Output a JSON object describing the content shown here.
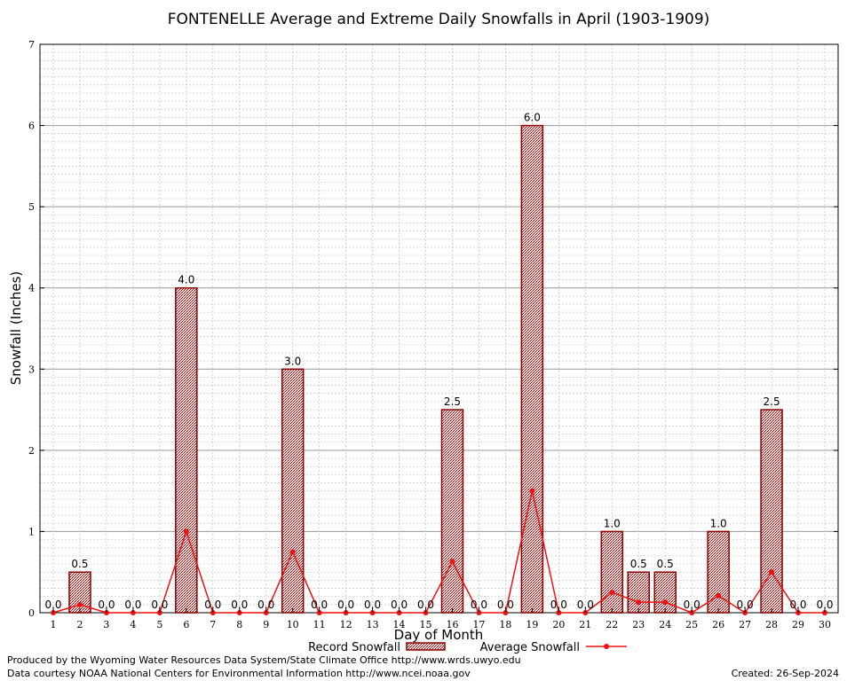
{
  "chart_data": {
    "type": "bar",
    "title": "FONTENELLE Average and Extreme Daily Snowfalls in April (1903-1909)",
    "xlabel": "Day of Month",
    "ylabel": "Snowfall (Inches)",
    "ylim": [
      0,
      7
    ],
    "y_ticks": [
      "0",
      "1",
      "2",
      "3",
      "4",
      "5",
      "6",
      "7"
    ],
    "categories": [
      "1",
      "2",
      "3",
      "4",
      "5",
      "6",
      "7",
      "8",
      "9",
      "10",
      "11",
      "12",
      "13",
      "14",
      "15",
      "16",
      "17",
      "18",
      "19",
      "20",
      "21",
      "22",
      "23",
      "24",
      "25",
      "26",
      "27",
      "28",
      "29",
      "30"
    ],
    "series": [
      {
        "name": "Record Snowfall",
        "kind": "bar",
        "color": "#8b0000",
        "values": [
          0.0,
          0.5,
          0.0,
          0.0,
          0.0,
          4.0,
          0.0,
          0.0,
          0.0,
          3.0,
          0.0,
          0.0,
          0.0,
          0.0,
          0.0,
          2.5,
          0.0,
          0.0,
          6.0,
          0.0,
          0.0,
          1.0,
          0.5,
          0.5,
          0.0,
          1.0,
          0.0,
          2.5,
          0.0,
          0.0
        ],
        "labels": [
          "0.0",
          "0.5",
          "0.0",
          "0.0",
          "0.0",
          "4.0",
          "0.0",
          "0.0",
          "0.0",
          "3.0",
          "0.0",
          "0.0",
          "0.0",
          "0.0",
          "0.0",
          "2.5",
          "0.0",
          "0.0",
          "6.0",
          "0.0",
          "0.0",
          "1.0",
          "0.5",
          "0.5",
          "0.0",
          "1.0",
          "0.0",
          "2.5",
          "0.0",
          "0.0"
        ]
      },
      {
        "name": "Average Snowfall",
        "kind": "line",
        "color": "#ee1111",
        "values": [
          0.0,
          0.1,
          0.0,
          0.0,
          0.0,
          1.0,
          0.0,
          0.0,
          0.0,
          0.75,
          0.0,
          0.0,
          0.0,
          0.0,
          0.0,
          0.63,
          0.0,
          0.0,
          1.5,
          0.0,
          0.0,
          0.25,
          0.13,
          0.13,
          0.0,
          0.21,
          0.0,
          0.5,
          0.0,
          0.0
        ]
      }
    ],
    "grid": true,
    "legend_position": "bottom"
  },
  "footer": {
    "credit_line1": "Produced by the Wyoming Water Resources Data System/State Climate Office http://www.wrds.uwyo.edu",
    "credit_line2": "Data courtesy NOAA National Centers for Environmental Information http://www.ncei.noaa.gov",
    "created": "Created: 26-Sep-2024"
  }
}
